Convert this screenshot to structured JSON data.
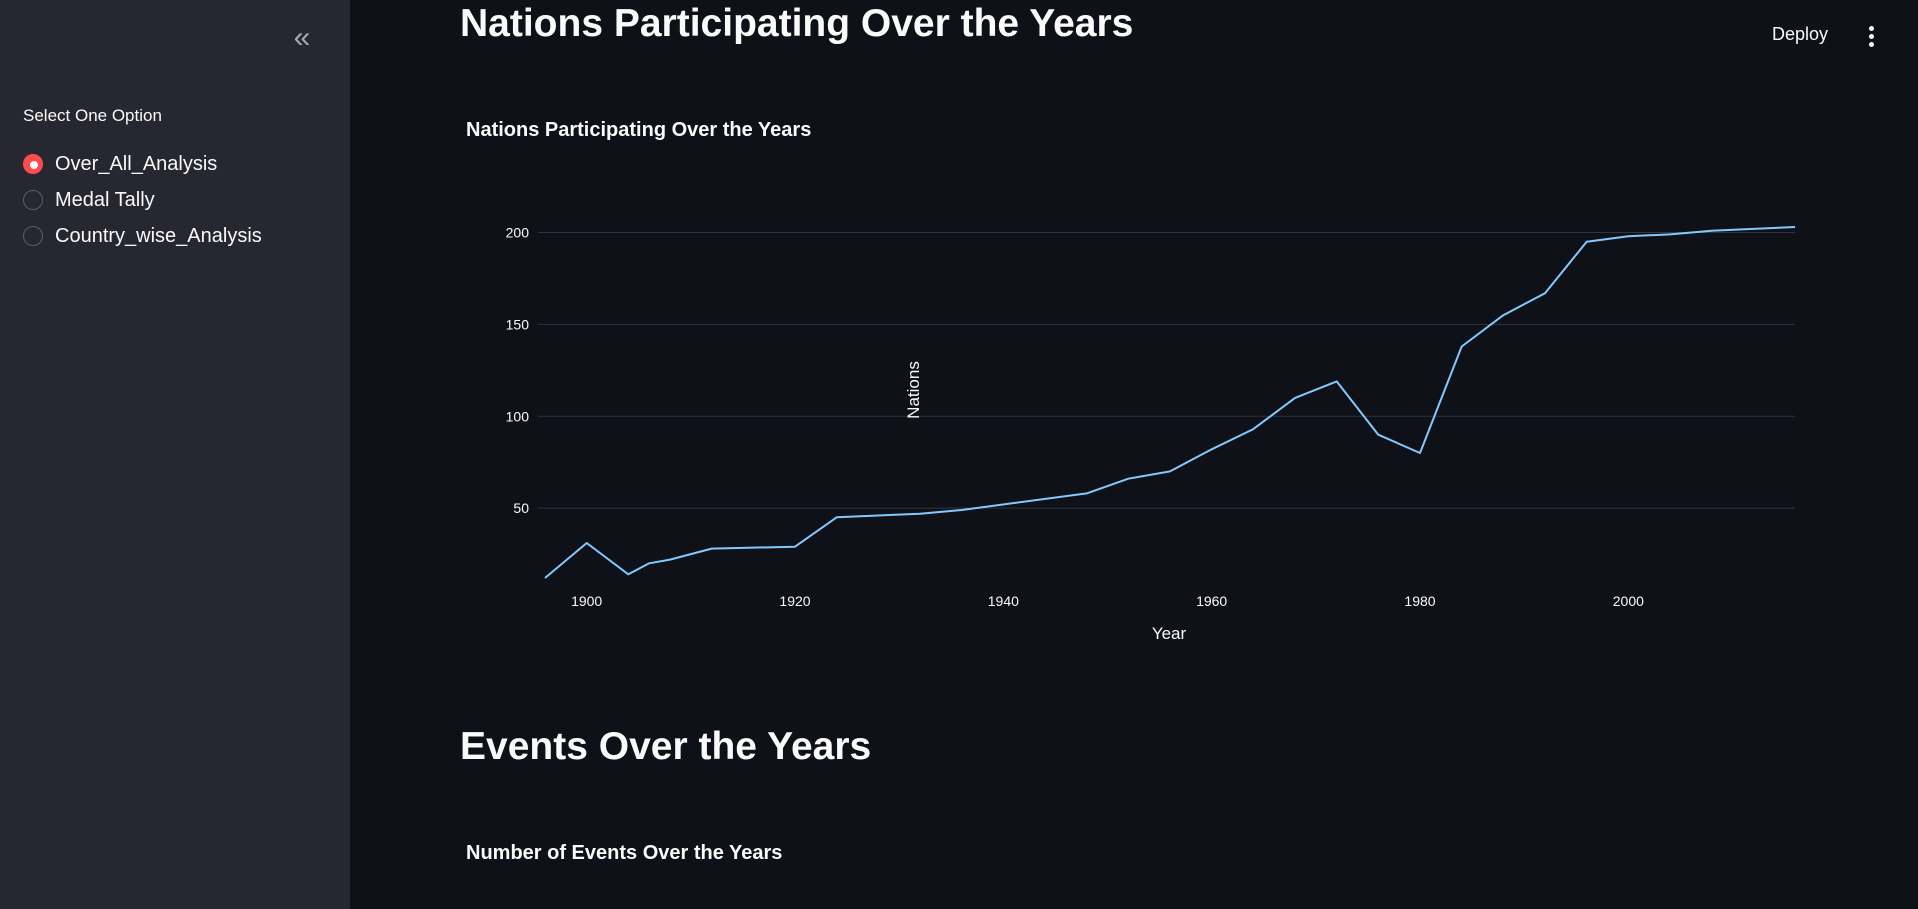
{
  "sidebar": {
    "collapse_icon": "double-chevron-left-icon",
    "radio_label": "Select One Option",
    "options": [
      {
        "label": "Over_All_Analysis",
        "selected": true
      },
      {
        "label": "Medal Tally",
        "selected": false
      },
      {
        "label": "Country_wise_Analysis",
        "selected": false
      }
    ]
  },
  "header": {
    "deploy_label": "Deploy",
    "menu_icon": "vertical-ellipsis-icon"
  },
  "main": {
    "section1_title": "Nations Participating Over the Years",
    "section2_title": "Events Over the Years",
    "section2_chart_title": "Number of Events Over the Years"
  },
  "colors": {
    "accent": "#ff4b4b",
    "line": "#83c9ff",
    "background": "#0e1117",
    "sidebar": "#262730"
  },
  "chart_data": {
    "type": "line",
    "title": "Nations Participating Over the Years",
    "xlabel": "Year",
    "ylabel": "Nations",
    "xticks": [
      1900,
      1920,
      1940,
      1960,
      1980,
      2000
    ],
    "yticks": [
      50,
      100,
      150,
      200
    ],
    "xlim": [
      1896,
      2016
    ],
    "ylim": [
      0,
      215
    ],
    "grid": "horizontal",
    "series": [
      {
        "x": [
          1896,
          1900,
          1904,
          1906,
          1908,
          1912,
          1920,
          1924,
          1928,
          1932,
          1936,
          1948,
          1952,
          1956,
          1960,
          1964,
          1968,
          1972,
          1976,
          1980,
          1984,
          1988,
          1992,
          1996,
          2000,
          2004,
          2008,
          2012,
          2016
        ],
        "y": [
          12,
          31,
          14,
          20,
          22,
          28,
          29,
          45,
          46,
          47,
          49,
          58,
          66,
          70,
          82,
          93,
          110,
          119,
          90,
          80,
          138,
          155,
          167,
          195,
          198,
          199,
          201,
          202,
          203
        ]
      }
    ]
  }
}
